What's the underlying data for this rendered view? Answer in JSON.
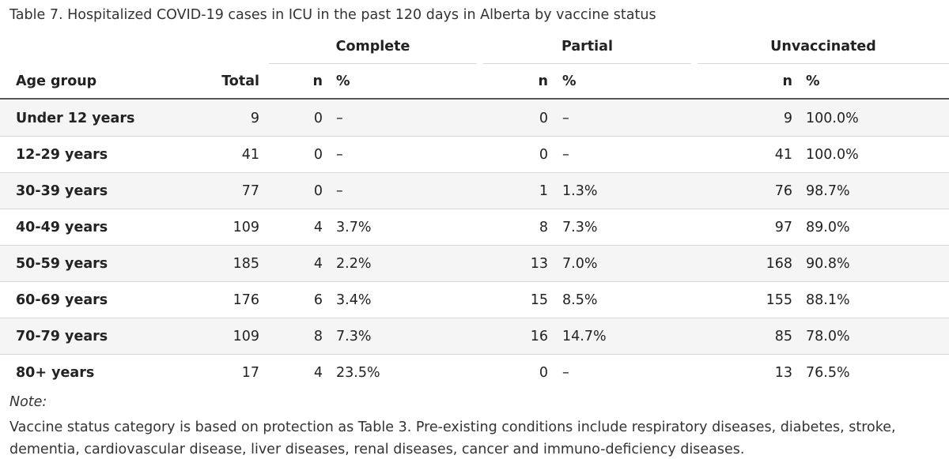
{
  "caption": "Table 7. Hospitalized COVID-19 cases in ICU in the past 120 days in Alberta by vaccine status",
  "groups": {
    "complete": "Complete",
    "partial": "Partial",
    "unvaccinated": "Unvaccinated"
  },
  "header": {
    "age_group": "Age group",
    "total": "Total",
    "complete_n": "n",
    "complete_pct": "%",
    "partial_n": "n",
    "partial_pct": "%",
    "unvacc_n": "n",
    "unvacc_pct": "%"
  },
  "rows": [
    {
      "age": "Under 12 years",
      "total": "9",
      "complete_n": "0",
      "complete_pct": "–",
      "partial_n": "0",
      "partial_pct": "–",
      "unvacc_n": "9",
      "unvacc_pct": "100.0%"
    },
    {
      "age": "12-29 years",
      "total": "41",
      "complete_n": "0",
      "complete_pct": "–",
      "partial_n": "0",
      "partial_pct": "–",
      "unvacc_n": "41",
      "unvacc_pct": "100.0%"
    },
    {
      "age": "30-39 years",
      "total": "77",
      "complete_n": "0",
      "complete_pct": "–",
      "partial_n": "1",
      "partial_pct": "1.3%",
      "unvacc_n": "76",
      "unvacc_pct": "98.7%"
    },
    {
      "age": "40-49 years",
      "total": "109",
      "complete_n": "4",
      "complete_pct": "3.7%",
      "partial_n": "8",
      "partial_pct": "7.3%",
      "unvacc_n": "97",
      "unvacc_pct": "89.0%"
    },
    {
      "age": "50-59 years",
      "total": "185",
      "complete_n": "4",
      "complete_pct": "2.2%",
      "partial_n": "13",
      "partial_pct": "7.0%",
      "unvacc_n": "168",
      "unvacc_pct": "90.8%"
    },
    {
      "age": "60-69 years",
      "total": "176",
      "complete_n": "6",
      "complete_pct": "3.4%",
      "partial_n": "15",
      "partial_pct": "8.5%",
      "unvacc_n": "155",
      "unvacc_pct": "88.1%"
    },
    {
      "age": "70-79 years",
      "total": "109",
      "complete_n": "8",
      "complete_pct": "7.3%",
      "partial_n": "16",
      "partial_pct": "14.7%",
      "unvacc_n": "85",
      "unvacc_pct": "78.0%"
    },
    {
      "age": "80+ years",
      "total": "17",
      "complete_n": "4",
      "complete_pct": "23.5%",
      "partial_n": "0",
      "partial_pct": "–",
      "unvacc_n": "13",
      "unvacc_pct": "76.5%"
    }
  ],
  "note": {
    "label": "Note:",
    "text": "Vaccine status category is based on protection as Table 3. Pre-existing conditions include respiratory diseases, diabetes, stroke, dementia, cardiovascular disease, liver diseases, renal diseases, cancer and immuno-deficiency diseases."
  },
  "colors": {
    "header_rule": "#555555",
    "row_rule": "#d8d8d8",
    "stripe": "#f5f5f5",
    "text": "#222222"
  }
}
